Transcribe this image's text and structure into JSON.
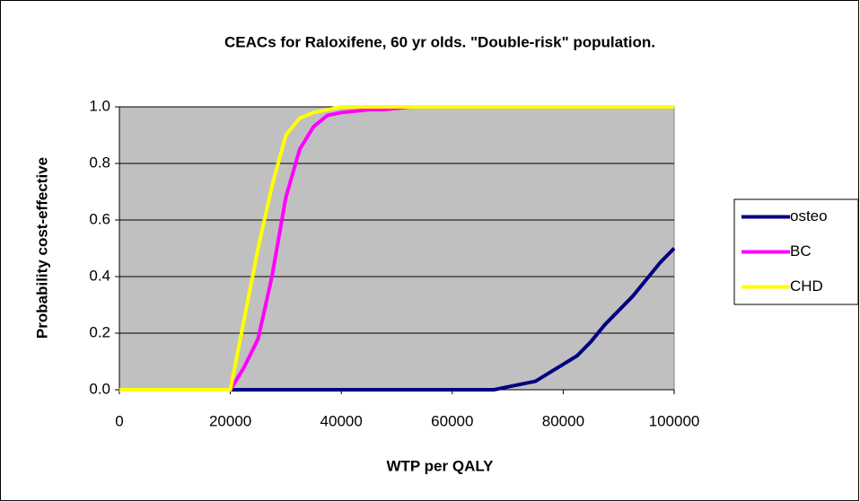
{
  "chart_data": {
    "type": "line",
    "title": "CEACs for Raloxifene, 60 yr olds. \"Double-risk\" population.",
    "x_label": "WTP per QALY",
    "y_label": "Probability cost-effective",
    "x": [
      0,
      2500,
      5000,
      7500,
      10000,
      12500,
      15000,
      17500,
      20000,
      22500,
      25000,
      27500,
      30000,
      32500,
      35000,
      37500,
      40000,
      42500,
      45000,
      47500,
      50000,
      52500,
      55000,
      57500,
      60000,
      62500,
      65000,
      67500,
      70000,
      72500,
      75000,
      77500,
      80000,
      82500,
      85000,
      87500,
      90000,
      92500,
      95000,
      97500,
      100000
    ],
    "series": [
      {
        "name": "osteo",
        "color": "#000080",
        "values": [
          0,
          0,
          0,
          0,
          0,
          0,
          0,
          0,
          0,
          0,
          0,
          0,
          0,
          0,
          0,
          0,
          0,
          0,
          0,
          0,
          0,
          0,
          0,
          0,
          0,
          0,
          0,
          0,
          0.01,
          0.02,
          0.03,
          0.06,
          0.09,
          0.12,
          0.17,
          0.23,
          0.28,
          0.33,
          0.39,
          0.45,
          0.5
        ]
      },
      {
        "name": "BC",
        "color": "#ff00ff",
        "values": [
          0,
          0,
          0,
          0,
          0,
          0,
          0,
          0,
          0,
          0.08,
          0.18,
          0.4,
          0.68,
          0.85,
          0.93,
          0.97,
          0.98,
          0.985,
          0.99,
          0.99,
          0.995,
          1,
          1,
          1,
          1,
          1,
          1,
          1,
          1,
          1,
          1,
          1,
          1,
          1,
          1,
          1,
          1,
          1,
          1,
          1,
          1
        ]
      },
      {
        "name": "CHD",
        "color": "#ffff00",
        "values": [
          0,
          0,
          0,
          0,
          0,
          0,
          0,
          0,
          0,
          0.25,
          0.5,
          0.72,
          0.9,
          0.96,
          0.98,
          0.99,
          1,
          1,
          1,
          1,
          1,
          1,
          1,
          1,
          1,
          1,
          1,
          1,
          1,
          1,
          1,
          1,
          1,
          1,
          1,
          1,
          1,
          1,
          1,
          1,
          1
        ]
      }
    ],
    "xlim": [
      0,
      100000
    ],
    "xticks": [
      0,
      20000,
      40000,
      60000,
      80000,
      100000
    ],
    "ylim": [
      0,
      1
    ],
    "yticks": [
      {
        "value": 0,
        "label": "0.0"
      },
      {
        "value": 0.2,
        "label": "0.2"
      },
      {
        "value": 0.4,
        "label": "0.4"
      },
      {
        "value": 0.6,
        "label": "0.6"
      },
      {
        "value": 0.8,
        "label": "0.8"
      },
      {
        "value": 1,
        "label": "1.0"
      }
    ],
    "grid": true,
    "plot_background": "#c0c0c0",
    "legend": "right"
  }
}
